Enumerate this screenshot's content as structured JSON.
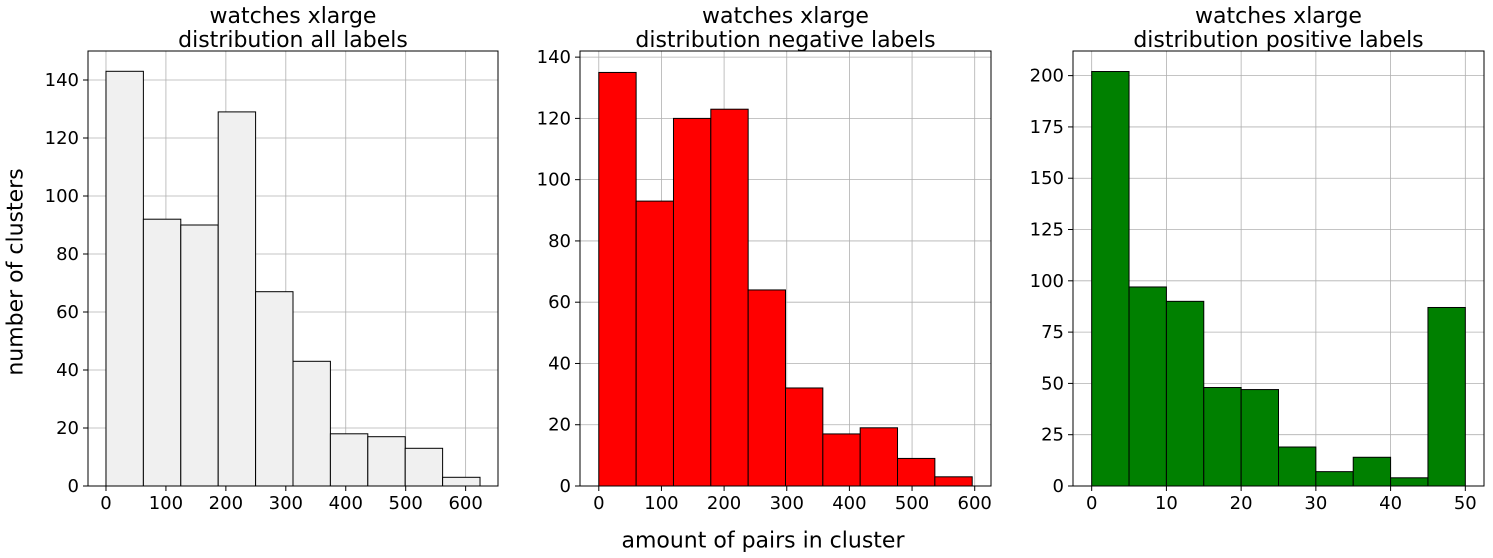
{
  "figure": {
    "ylabel": "number of clusters",
    "xlabel": "amount of pairs in cluster"
  },
  "chart_data": [
    {
      "type": "bar",
      "title": "watches xlarge\ndistribution all labels",
      "title_lines": [
        "watches xlarge",
        "distribution all labels"
      ],
      "bin_edges": [
        0,
        62.4,
        124.8,
        187.2,
        249.6,
        312,
        374.4,
        436.8,
        499.2,
        561.6,
        624
      ],
      "values": [
        143,
        92,
        90,
        129,
        67,
        43,
        18,
        17,
        13,
        3
      ],
      "xlim": [
        -30,
        654
      ],
      "ylim": [
        0,
        150
      ],
      "xticks": [
        0,
        100,
        200,
        300,
        400,
        500,
        600
      ],
      "xtick_labels": [
        "0",
        "100",
        "200",
        "300",
        "400",
        "500",
        "600"
      ],
      "yticks": [
        0,
        20,
        40,
        60,
        80,
        100,
        120,
        140
      ],
      "ytick_labels": [
        "0",
        "20",
        "40",
        "60",
        "80",
        "100",
        "120",
        "140"
      ],
      "grid": true,
      "bar_color": "#f0f0f0",
      "edge_color": "#000000"
    },
    {
      "type": "bar",
      "title": "watches xlarge\ndistribution negative labels",
      "title_lines": [
        "watches xlarge",
        "distribution negative labels"
      ],
      "bin_edges": [
        0,
        59.6,
        119.2,
        178.8,
        238.4,
        298,
        357.6,
        417.2,
        476.8,
        536.4,
        596
      ],
      "values": [
        135,
        93,
        120,
        123,
        64,
        32,
        17,
        19,
        9,
        3
      ],
      "xlim": [
        -30,
        626
      ],
      "ylim": [
        0,
        142
      ],
      "xticks": [
        0,
        100,
        200,
        300,
        400,
        500,
        600
      ],
      "xtick_labels": [
        "0",
        "100",
        "200",
        "300",
        "400",
        "500",
        "600"
      ],
      "yticks": [
        0,
        20,
        40,
        60,
        80,
        100,
        120,
        140
      ],
      "ytick_labels": [
        "0",
        "20",
        "40",
        "60",
        "80",
        "100",
        "120",
        "140"
      ],
      "grid": true,
      "bar_color": "#ff0000",
      "edge_color": "#000000"
    },
    {
      "type": "bar",
      "title": "watches xlarge\ndistribution positive labels",
      "title_lines": [
        "watches xlarge",
        "distribution positive labels"
      ],
      "bin_edges": [
        0,
        5,
        10,
        15,
        20,
        25,
        30,
        35,
        40,
        45,
        50
      ],
      "values": [
        202,
        97,
        90,
        48,
        47,
        19,
        7,
        14,
        4,
        87
      ],
      "xlim": [
        -2.5,
        52.5
      ],
      "ylim": [
        0,
        212
      ],
      "xticks": [
        0,
        10,
        20,
        30,
        40,
        50
      ],
      "xtick_labels": [
        "0",
        "10",
        "20",
        "30",
        "40",
        "50"
      ],
      "yticks": [
        0,
        25,
        50,
        75,
        100,
        125,
        150,
        175,
        200
      ],
      "ytick_labels": [
        "0",
        "25",
        "50",
        "75",
        "100",
        "125",
        "150",
        "175",
        "200"
      ],
      "grid": true,
      "bar_color": "#008000",
      "edge_color": "#000000"
    }
  ]
}
